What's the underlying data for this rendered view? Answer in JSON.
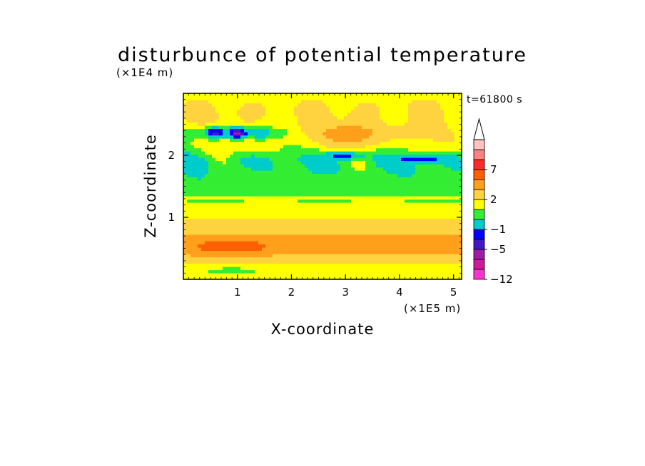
{
  "chart_data": {
    "type": "heatmap",
    "title": "disturbunce of potential temperature",
    "xlabel": "X-coordinate",
    "ylabel": "Z-coordinate",
    "x_unit_label": "(×1E5 m)",
    "y_unit_label": "(×1E4 m)",
    "time_label": "t=61800 s",
    "xlim": [
      0,
      5.15
    ],
    "ylim": [
      0,
      3.0
    ],
    "x_ticks": [
      1,
      2,
      3,
      4,
      5
    ],
    "y_ticks": [
      1,
      2
    ],
    "colorbar": {
      "levels": [
        -12,
        -9,
        -7,
        -5,
        -3,
        -1,
        0,
        1,
        2,
        3,
        5,
        7,
        9
      ],
      "tick_labels": [
        "-12",
        "-5",
        "-1",
        "2",
        "7"
      ],
      "tick_values": [
        -12,
        -5,
        -1,
        2,
        7
      ],
      "colors": [
        "#ff33cc",
        "#cc1a99",
        "#9e1aa8",
        "#4019c7",
        "#0000ff",
        "#00cccc",
        "#33ee33",
        "#ffff00",
        "#ffd23f",
        "#ff9f1a",
        "#ff5f00",
        "#ff2a2a",
        "#ff8080",
        "#ffc3c3"
      ],
      "extend_max_arrow": true
    },
    "grid": false
  }
}
